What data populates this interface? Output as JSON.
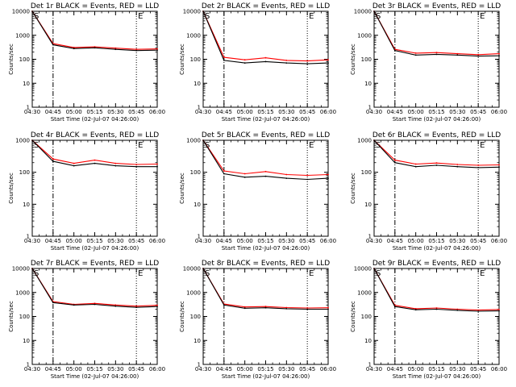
{
  "figure": {
    "ylabel": "Counts/sec",
    "xlabel": "Start Time (02-Jul-07 04:26:00)",
    "xticks": [
      "04:30",
      "04:45",
      "05:00",
      "05:15",
      "05:30",
      "05:45",
      "06:00"
    ],
    "yticks_short": [
      "1",
      "10",
      "100",
      "1000"
    ],
    "yticks_long": [
      "1",
      "10",
      "100",
      "1000",
      "10000"
    ],
    "start_marker": "S",
    "end_marker": "E",
    "colors": {
      "events": "#000000",
      "lld": "#ff0000",
      "axes": "#000000"
    }
  },
  "chart_data": [
    {
      "type": "line",
      "title": "Det 1r BLACK = Events, RED = LLD",
      "xlabel": "Start Time (02-Jul-07 04:26:00)",
      "ylabel": "Counts/sec",
      "x": [
        "04:30",
        "04:45",
        "05:00",
        "05:15",
        "05:30",
        "05:45",
        "06:00"
      ],
      "ylim": [
        1,
        10000
      ],
      "yscale": "log",
      "start_time": "04:45",
      "end_time": "05:45",
      "series": [
        {
          "name": "Events",
          "color": "#000000",
          "values": [
            10000,
            400,
            280,
            300,
            260,
            230,
            240
          ]
        },
        {
          "name": "LLD",
          "color": "#ff0000",
          "values": [
            10000,
            450,
            310,
            330,
            290,
            260,
            270
          ]
        }
      ]
    },
    {
      "type": "line",
      "title": "Det 2r BLACK = Events, RED = LLD",
      "xlabel": "Start Time (02-Jul-07 04:26:00)",
      "ylabel": "Counts/sec",
      "x": [
        "04:30",
        "04:45",
        "05:00",
        "05:15",
        "05:30",
        "05:45",
        "06:00"
      ],
      "ylim": [
        1,
        10000
      ],
      "yscale": "log",
      "start_time": "04:45",
      "end_time": "05:45",
      "series": [
        {
          "name": "Events",
          "color": "#000000",
          "values": [
            10000,
            90,
            70,
            80,
            70,
            65,
            70
          ]
        },
        {
          "name": "LLD",
          "color": "#ff0000",
          "values": [
            10000,
            120,
            95,
            115,
            90,
            85,
            95
          ]
        }
      ]
    },
    {
      "type": "line",
      "title": "Det 3r BLACK = Events, RED = LLD",
      "xlabel": "Start Time (02-Jul-07 04:26:00)",
      "ylabel": "Counts/sec",
      "x": [
        "04:30",
        "04:45",
        "05:00",
        "05:15",
        "05:30",
        "05:45",
        "06:00"
      ],
      "ylim": [
        1,
        10000
      ],
      "yscale": "log",
      "start_time": "04:45",
      "end_time": "05:45",
      "series": [
        {
          "name": "Events",
          "color": "#000000",
          "values": [
            10000,
            230,
            150,
            160,
            150,
            135,
            140
          ]
        },
        {
          "name": "LLD",
          "color": "#ff0000",
          "values": [
            10000,
            260,
            180,
            190,
            170,
            155,
            170
          ]
        }
      ]
    },
    {
      "type": "line",
      "title": "Det 4r BLACK = Events, RED = LLD",
      "xlabel": "Start Time (02-Jul-07 04:26:00)",
      "ylabel": "Counts/sec",
      "x": [
        "04:30",
        "04:45",
        "05:00",
        "05:15",
        "05:30",
        "05:45",
        "06:00"
      ],
      "ylim": [
        1,
        1000
      ],
      "yscale": "log",
      "start_time": "04:45",
      "end_time": "05:45",
      "series": [
        {
          "name": "Events",
          "color": "#000000",
          "values": [
            1000,
            220,
            160,
            190,
            160,
            150,
            150
          ]
        },
        {
          "name": "LLD",
          "color": "#ff0000",
          "values": [
            1000,
            260,
            190,
            240,
            190,
            175,
            180
          ]
        }
      ]
    },
    {
      "type": "line",
      "title": "Det 5r BLACK = Events, RED = LLD",
      "xlabel": "Start Time (02-Jul-07 04:26:00)",
      "ylabel": "Counts/sec",
      "x": [
        "04:30",
        "04:45",
        "05:00",
        "05:15",
        "05:30",
        "05:45",
        "06:00"
      ],
      "ylim": [
        1,
        1000
      ],
      "yscale": "log",
      "start_time": "04:45",
      "end_time": "05:45",
      "series": [
        {
          "name": "Events",
          "color": "#000000",
          "values": [
            1000,
            90,
            70,
            75,
            65,
            60,
            65
          ]
        },
        {
          "name": "LLD",
          "color": "#ff0000",
          "values": [
            1000,
            110,
            90,
            105,
            85,
            80,
            85
          ]
        }
      ]
    },
    {
      "type": "line",
      "title": "Det 6r BLACK = Events, RED = LLD",
      "xlabel": "Start Time (02-Jul-07 04:26:00)",
      "ylabel": "Counts/sec",
      "x": [
        "04:30",
        "04:45",
        "05:00",
        "05:15",
        "05:30",
        "05:45",
        "06:00"
      ],
      "ylim": [
        1,
        1000
      ],
      "yscale": "log",
      "start_time": "04:45",
      "end_time": "05:45",
      "series": [
        {
          "name": "Events",
          "color": "#000000",
          "values": [
            1000,
            200,
            150,
            165,
            150,
            140,
            145
          ]
        },
        {
          "name": "LLD",
          "color": "#ff0000",
          "values": [
            1000,
            240,
            180,
            195,
            175,
            165,
            170
          ]
        }
      ]
    },
    {
      "type": "line",
      "title": "Det 7r BLACK = Events, RED = LLD",
      "xlabel": "Start Time (02-Jul-07 04:26:00)",
      "ylabel": "Counts/sec",
      "x": [
        "04:30",
        "04:45",
        "05:00",
        "05:15",
        "05:30",
        "05:45",
        "06:00"
      ],
      "ylim": [
        1,
        10000
      ],
      "yscale": "log",
      "start_time": "04:45",
      "end_time": "05:45",
      "series": [
        {
          "name": "Events",
          "color": "#000000",
          "values": [
            10000,
            380,
            300,
            320,
            270,
            240,
            260
          ]
        },
        {
          "name": "LLD",
          "color": "#ff0000",
          "values": [
            10000,
            420,
            320,
            350,
            300,
            270,
            290
          ]
        }
      ]
    },
    {
      "type": "line",
      "title": "Det 8r BLACK = Events, RED = LLD",
      "xlabel": "Start Time (02-Jul-07 04:26:00)",
      "ylabel": "Counts/sec",
      "x": [
        "04:30",
        "04:45",
        "05:00",
        "05:15",
        "05:30",
        "05:45",
        "06:00"
      ],
      "ylim": [
        1,
        10000
      ],
      "yscale": "log",
      "start_time": "04:45",
      "end_time": "05:45",
      "series": [
        {
          "name": "Events",
          "color": "#000000",
          "values": [
            10000,
            300,
            220,
            230,
            210,
            200,
            200
          ]
        },
        {
          "name": "LLD",
          "color": "#ff0000",
          "values": [
            10000,
            330,
            250,
            260,
            235,
            225,
            230
          ]
        }
      ]
    },
    {
      "type": "line",
      "title": "Det 9r BLACK = Events, RED = LLD",
      "xlabel": "Start Time (02-Jul-07 04:26:00)",
      "ylabel": "Counts/sec",
      "x": [
        "04:30",
        "04:45",
        "05:00",
        "05:15",
        "05:30",
        "05:45",
        "06:00"
      ],
      "ylim": [
        1,
        10000
      ],
      "yscale": "log",
      "start_time": "04:45",
      "end_time": "05:45",
      "series": [
        {
          "name": "Events",
          "color": "#000000",
          "values": [
            10000,
            260,
            190,
            200,
            180,
            165,
            170
          ]
        },
        {
          "name": "LLD",
          "color": "#ff0000",
          "values": [
            10000,
            290,
            210,
            225,
            200,
            185,
            195
          ]
        }
      ]
    }
  ]
}
